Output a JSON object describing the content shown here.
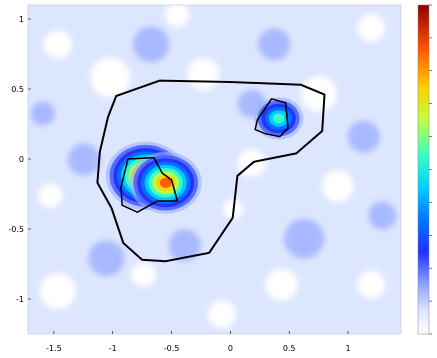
{
  "chart_data": {
    "type": "heatmap",
    "title": "",
    "xlabel": "",
    "ylabel": "",
    "xlim": [
      -1.72,
      1.45
    ],
    "ylim": [
      -1.25,
      1.1
    ],
    "x_ticks": [
      {
        "value": -1.5,
        "label": "-1.5"
      },
      {
        "value": -1,
        "label": "-1"
      },
      {
        "value": -0.5,
        "label": "-0.5"
      },
      {
        "value": 0,
        "label": "0"
      },
      {
        "value": 0.5,
        "label": "0.5"
      },
      {
        "value": 1,
        "label": "1"
      }
    ],
    "y_ticks": [
      {
        "value": 1,
        "label": "1"
      },
      {
        "value": 0.5,
        "label": "0.5"
      },
      {
        "value": 0,
        "label": "0"
      },
      {
        "value": -0.5,
        "label": "-0.5"
      },
      {
        "value": -1,
        "label": "-1"
      }
    ],
    "colormap": "jet",
    "colorbar_range": [
      0,
      1
    ],
    "hotspots": [
      {
        "x": -0.72,
        "y": -0.12,
        "peak": 1.0
      },
      {
        "x": -0.55,
        "y": -0.17,
        "peak": 0.9
      },
      {
        "x": 0.41,
        "y": 0.29,
        "peak": 0.62
      }
    ],
    "region_boundaries": [
      {
        "points": [
          [
            -0.97,
            0.45
          ],
          [
            -0.6,
            0.56
          ],
          [
            0.0,
            0.55
          ],
          [
            0.6,
            0.53
          ],
          [
            0.8,
            0.46
          ],
          [
            0.78,
            0.2
          ],
          [
            0.56,
            0.04
          ],
          [
            0.2,
            -0.02
          ],
          [
            0.06,
            -0.12
          ],
          [
            0.02,
            -0.42
          ],
          [
            -0.18,
            -0.67
          ],
          [
            -0.55,
            -0.73
          ],
          [
            -0.75,
            -0.72
          ],
          [
            -0.91,
            -0.6
          ],
          [
            -1.01,
            -0.35
          ],
          [
            -1.13,
            -0.17
          ],
          [
            -1.11,
            0.05
          ],
          [
            -1.04,
            0.3
          ],
          [
            -0.97,
            0.45
          ]
        ]
      },
      {
        "points": [
          [
            -0.87,
            0.0
          ],
          [
            -0.65,
            0.01
          ],
          [
            -0.58,
            -0.1
          ],
          [
            -0.5,
            -0.15
          ],
          [
            -0.45,
            -0.3
          ],
          [
            -0.62,
            -0.3
          ],
          [
            -0.79,
            -0.38
          ],
          [
            -0.92,
            -0.33
          ],
          [
            -0.93,
            -0.2
          ],
          [
            -0.87,
            0.0
          ]
        ]
      },
      {
        "points": [
          [
            0.35,
            0.43
          ],
          [
            0.47,
            0.4
          ],
          [
            0.49,
            0.22
          ],
          [
            0.42,
            0.16
          ],
          [
            0.3,
            0.18
          ],
          [
            0.21,
            0.21
          ],
          [
            0.23,
            0.28
          ],
          [
            0.35,
            0.43
          ]
        ]
      }
    ]
  }
}
